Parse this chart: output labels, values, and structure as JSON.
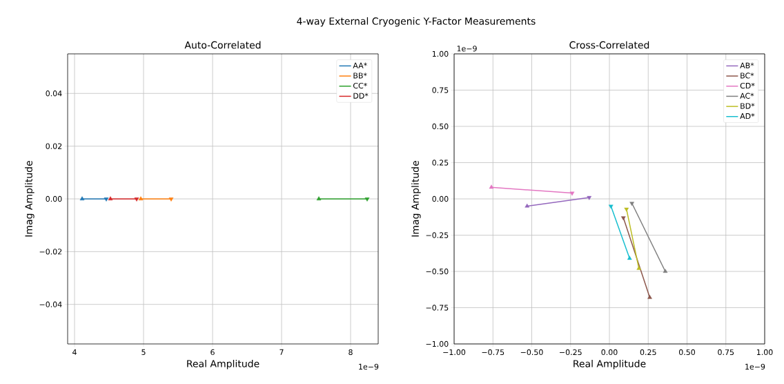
{
  "chart_data": [
    {
      "type": "line",
      "title": "Auto-Correlated",
      "xlabel": "Real Amplitude",
      "ylabel": "Imag Amplitude",
      "annotations": [
        "4-way External Cryogenic Y-Factor Measurements",
        "1e−9"
      ],
      "xlim": [
        3.9,
        8.4
      ],
      "ylim": [
        -0.055,
        0.055
      ],
      "xticks": [
        4,
        5,
        6,
        7,
        8
      ],
      "yticks": [
        {
          "value": -0.04,
          "label": "−0.04"
        },
        {
          "value": -0.02,
          "label": "−0.02"
        },
        {
          "value": 0,
          "label": "0.00"
        },
        {
          "value": 0.02,
          "label": "0.02"
        },
        {
          "value": 0.04,
          "label": "0.04"
        }
      ],
      "grid": true,
      "legend": "top right",
      "marker": "triangle",
      "series": [
        {
          "name": "AA*",
          "color": "#1f77b4",
          "x": [
            4.11,
            4.46
          ],
          "values": [
            0,
            0
          ]
        },
        {
          "name": "BB*",
          "color": "#ff7f0e",
          "x": [
            4.96,
            5.4
          ],
          "values": [
            0,
            0
          ]
        },
        {
          "name": "CC*",
          "color": "#2ca02c",
          "x": [
            7.54,
            8.24
          ],
          "values": [
            0,
            0
          ]
        },
        {
          "name": "DD*",
          "color": "#d62728",
          "x": [
            4.52,
            4.9
          ],
          "values": [
            0,
            0
          ]
        }
      ]
    },
    {
      "type": "line",
      "title": "Cross-Correlated",
      "xlabel": "Real Amplitude",
      "ylabel": "Imag Amplitude",
      "annotations": [
        "1e−9",
        "1e−9"
      ],
      "xlim": [
        -1,
        1
      ],
      "ylim": [
        -1,
        1
      ],
      "xticks": [
        {
          "value": -1,
          "label": "−1.00"
        },
        {
          "value": -0.75,
          "label": "−0.75"
        },
        {
          "value": -0.5,
          "label": "−0.50"
        },
        {
          "value": -0.25,
          "label": "−0.25"
        },
        {
          "value": 0,
          "label": "0.00"
        },
        {
          "value": 0.25,
          "label": "0.25"
        },
        {
          "value": 0.5,
          "label": "0.50"
        },
        {
          "value": 0.75,
          "label": "0.75"
        },
        {
          "value": 1,
          "label": "1.00"
        }
      ],
      "yticks": [
        {
          "value": -1,
          "label": "−1.00"
        },
        {
          "value": -0.75,
          "label": "−0.75"
        },
        {
          "value": -0.5,
          "label": "−0.50"
        },
        {
          "value": -0.25,
          "label": "−0.25"
        },
        {
          "value": 0,
          "label": "0.00"
        },
        {
          "value": 0.25,
          "label": "0.25"
        },
        {
          "value": 0.5,
          "label": "0.50"
        },
        {
          "value": 0.75,
          "label": "0.75"
        },
        {
          "value": 1,
          "label": "1.00"
        }
      ],
      "grid": true,
      "legend": "top right",
      "marker": "triangle",
      "series": [
        {
          "name": "AB*",
          "color": "#9467bd",
          "x": [
            -0.53,
            -0.13
          ],
          "values": [
            -0.05,
            0.01
          ]
        },
        {
          "name": "BC*",
          "color": "#8c564b",
          "x": [
            0.26,
            0.09
          ],
          "values": [
            -0.68,
            -0.13
          ]
        },
        {
          "name": "CD*",
          "color": "#e377c2",
          "x": [
            -0.76,
            -0.24
          ],
          "values": [
            0.08,
            0.04
          ]
        },
        {
          "name": "AC*",
          "color": "#7f7f7f",
          "x": [
            0.36,
            0.145
          ],
          "values": [
            -0.5,
            -0.03
          ]
        },
        {
          "name": "BD*",
          "color": "#bcbd22",
          "x": [
            0.19,
            0.11
          ],
          "values": [
            -0.48,
            -0.07
          ]
        },
        {
          "name": "AD*",
          "color": "#17becf",
          "x": [
            0.13,
            0.01
          ],
          "values": [
            -0.41,
            -0.05
          ]
        }
      ]
    }
  ]
}
